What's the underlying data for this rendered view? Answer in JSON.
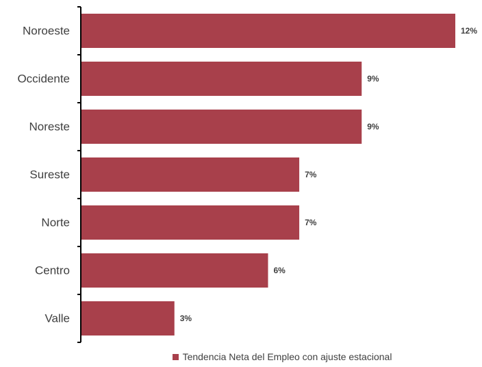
{
  "chart_data": {
    "type": "bar",
    "orientation": "horizontal",
    "categories": [
      "Noroeste",
      "Occidente",
      "Noreste",
      "Sureste",
      "Norte",
      "Centro",
      "Valle"
    ],
    "series": [
      {
        "name": "Tendencia Neta del Empleo con ajuste estacional",
        "values": [
          12,
          9,
          9,
          7,
          7,
          6,
          3
        ],
        "labels": [
          "12%",
          "9%",
          "9%",
          "7%",
          "7%",
          "6%",
          "3%"
        ]
      }
    ],
    "title": "",
    "xlabel": "",
    "ylabel": "",
    "xlim": [
      0,
      12
    ],
    "grid": false,
    "legend_position": "bottom",
    "bar_color": "#A8404B"
  }
}
